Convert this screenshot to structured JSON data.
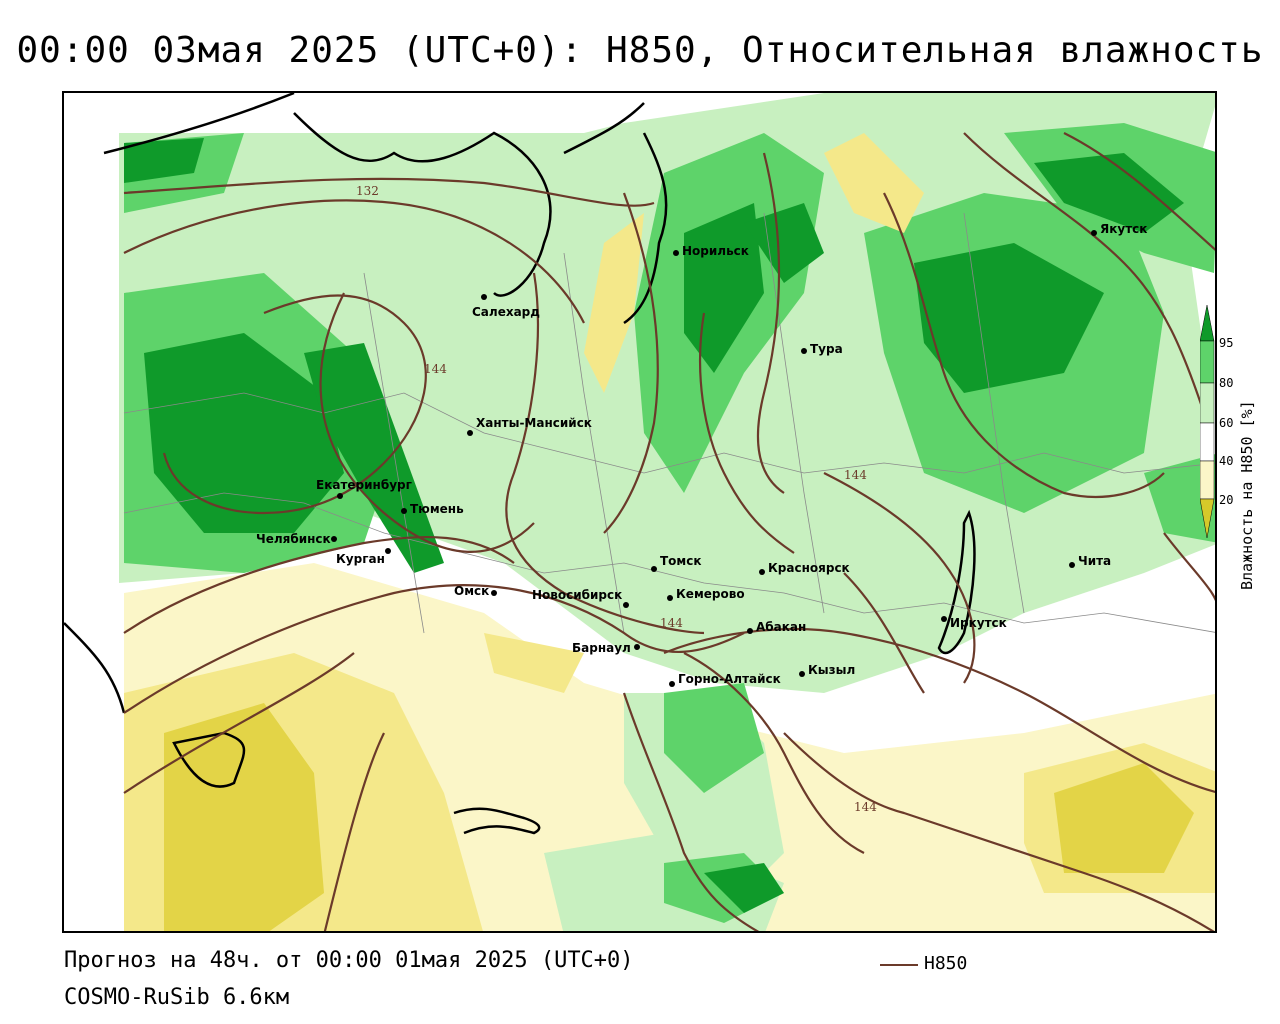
{
  "title": "00:00 03мая 2025 (UTC+0): H850, Относительная влажность",
  "footer": {
    "forecast": "Прогноз на 48ч. от 00:00 01мая 2025 (UTC+0)",
    "model": "COSMO-RuSib 6.6км"
  },
  "legend": {
    "line_label": "H850",
    "line_color": "#6b3a2a"
  },
  "colorbar": {
    "title": "Влажность на H850 [%]",
    "ticks": [
      "95",
      "80",
      "60",
      "40",
      "20"
    ],
    "colors": {
      "very_dry": "#d6c92a",
      "dry": "#f4e88a",
      "pale": "#fbf6c8",
      "neutral": "#ffffff",
      "light_green": "#c8f0c0",
      "green": "#5ed36a",
      "dark_green": "#0f9a2a"
    }
  },
  "contour_labels": [
    "132",
    "144",
    "144",
    "144",
    "144"
  ],
  "cities": [
    "Якутск",
    "Норильск",
    "Салехард",
    "Тура",
    "Ханты-Мансийск",
    "Екатеринбург",
    "Тюмень",
    "Челябинск",
    "Курган",
    "Томск",
    "Красноярск",
    "Чита",
    "Омск",
    "Новосибирск",
    "Кемерово",
    "Абакан",
    "Иркутск",
    "Барнаул",
    "Кызыл",
    "Горно-Алтайск"
  ]
}
